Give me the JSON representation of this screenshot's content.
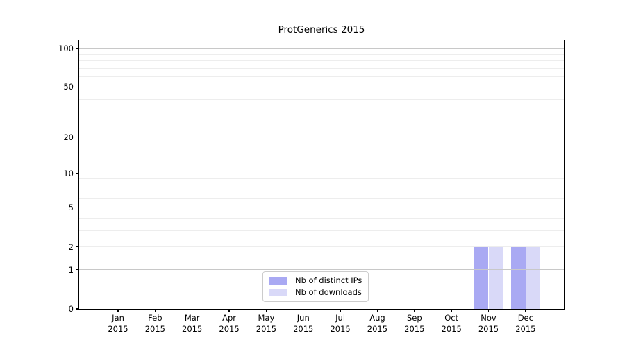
{
  "chart_data": {
    "type": "bar",
    "title": "ProtGenerics 2015",
    "x_categories": [
      "Jan",
      "Feb",
      "Mar",
      "Apr",
      "May",
      "Jun",
      "Jul",
      "Aug",
      "Sep",
      "Oct",
      "Nov",
      "Dec"
    ],
    "x_year": "2015",
    "series": [
      {
        "name": "Nb of distinct IPs",
        "color": "#a9a9f3",
        "values": [
          0,
          0,
          0,
          0,
          0,
          0,
          0,
          0,
          0,
          0,
          2,
          2
        ]
      },
      {
        "name": "Nb of downloads",
        "color": "#d9d9f8",
        "values": [
          0,
          0,
          0,
          0,
          0,
          0,
          0,
          0,
          0,
          0,
          2,
          2
        ]
      }
    ],
    "xlabel": "",
    "ylabel": "",
    "yscale": "log1p",
    "ylim": [
      0,
      116
    ],
    "y_ticks": [
      0,
      1,
      2,
      5,
      10,
      20,
      50,
      100
    ],
    "y_major_gridlines": [
      1,
      10,
      100
    ],
    "y_minor_gridlines": [
      2,
      3,
      4,
      5,
      6,
      7,
      8,
      9,
      20,
      30,
      40,
      50,
      60,
      70,
      80,
      90
    ],
    "grid": true,
    "legend": {
      "position": "lower-center",
      "items": [
        {
          "label": "Nb of distinct IPs",
          "color": "#a9a9f3"
        },
        {
          "label": "Nb of downloads",
          "color": "#d9d9f8"
        }
      ]
    },
    "colors": {
      "major_grid": "#c8c8c8",
      "minor_grid": "#ededed",
      "frame": "#000000",
      "background": "#ffffff"
    }
  }
}
